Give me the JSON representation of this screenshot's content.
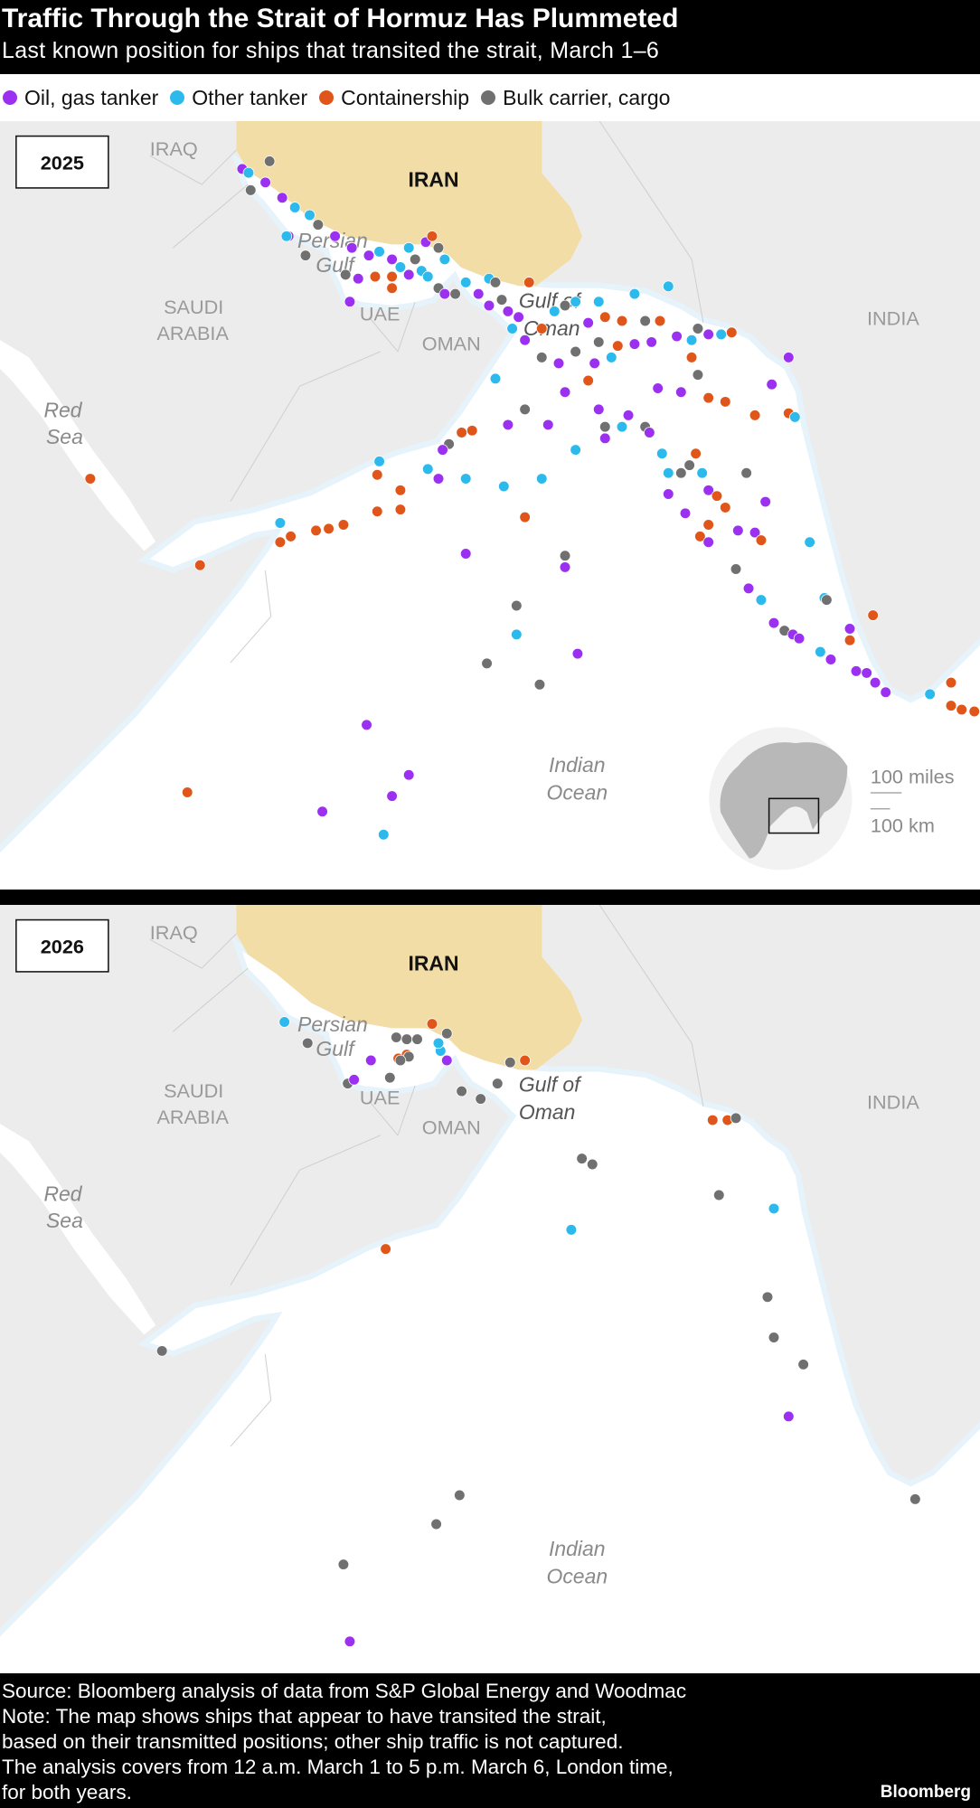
{
  "header": {
    "title": "Traffic Through the Strait of Hormuz Has Plummeted",
    "subtitle": "Last known position for ships that transited the strait, March 1–6"
  },
  "legend": [
    {
      "id": "oil",
      "label": "Oil, gas tanker",
      "color": "#9b30f0"
    },
    {
      "id": "other",
      "label": "Other tanker",
      "color": "#2cb9ec"
    },
    {
      "id": "container",
      "label": "Containership",
      "color": "#e0561a"
    },
    {
      "id": "bulk",
      "label": "Bulk carrier, cargo",
      "color": "#707070"
    }
  ],
  "colors": {
    "land": "#ececec",
    "sea": "#ffffff",
    "iran": "#f3dda6"
  },
  "map_labels": {
    "iraq": "IRAQ",
    "iran": "IRAN",
    "persian": "Persian",
    "gulf": "Gulf",
    "saudi": "SAUDI",
    "arabia": "ARABIA",
    "uae": "UAE",
    "oman": "OMAN",
    "gulf_of": "Gulf of",
    "oman_sea": "Oman",
    "india": "INDIA",
    "red": "Red",
    "sea": "Sea",
    "indian": "Indian",
    "ocean": "Ocean"
  },
  "inset": {
    "scale_miles": "100 miles",
    "scale_km": "100 km"
  },
  "maps": [
    {
      "year": "2025",
      "ships": [
        [
          46.2,
          31.8,
          "oil"
        ],
        [
          46.5,
          31.6,
          "other"
        ],
        [
          47.5,
          32.2,
          "bulk"
        ],
        [
          46.6,
          30.7,
          "bulk"
        ],
        [
          47.3,
          31.1,
          "oil"
        ],
        [
          48.1,
          30.3,
          "oil"
        ],
        [
          48.7,
          29.8,
          "other"
        ],
        [
          49.4,
          29.4,
          "other"
        ],
        [
          49.8,
          28.9,
          "bulk"
        ],
        [
          48.4,
          28.3,
          "oil"
        ],
        [
          48.3,
          28.3,
          "other"
        ],
        [
          49.2,
          27.3,
          "bulk"
        ],
        [
          50.6,
          28.3,
          "oil"
        ],
        [
          51.4,
          27.7,
          "oil"
        ],
        [
          52.2,
          27.3,
          "oil"
        ],
        [
          52.7,
          27.5,
          "other"
        ],
        [
          53.3,
          27.1,
          "oil"
        ],
        [
          54.1,
          27.7,
          "other"
        ],
        [
          54.9,
          28.0,
          "oil"
        ],
        [
          55.2,
          28.3,
          "container"
        ],
        [
          55.5,
          27.7,
          "bulk"
        ],
        [
          55.8,
          27.1,
          "other"
        ],
        [
          51.1,
          26.3,
          "bulk"
        ],
        [
          51.7,
          26.1,
          "oil"
        ],
        [
          52.5,
          26.2,
          "container"
        ],
        [
          53.3,
          26.2,
          "container"
        ],
        [
          54.1,
          26.3,
          "oil"
        ],
        [
          54.7,
          26.5,
          "other"
        ],
        [
          55.0,
          26.2,
          "other"
        ],
        [
          55.5,
          25.6,
          "bulk"
        ],
        [
          55.8,
          25.3,
          "oil"
        ],
        [
          56.3,
          25.3,
          "bulk"
        ],
        [
          56.8,
          25.9,
          "other"
        ],
        [
          57.4,
          25.3,
          "oil"
        ],
        [
          57.9,
          26.1,
          "other"
        ],
        [
          58.2,
          25.9,
          "bulk"
        ],
        [
          57.9,
          24.7,
          "oil"
        ],
        [
          58.5,
          25.0,
          "bulk"
        ],
        [
          58.8,
          24.4,
          "oil"
        ],
        [
          59.0,
          23.5,
          "other"
        ],
        [
          59.3,
          24.1,
          "oil"
        ],
        [
          59.8,
          25.9,
          "container"
        ],
        [
          59.6,
          22.9,
          "oil"
        ],
        [
          60.4,
          23.5,
          "container"
        ],
        [
          61.0,
          24.4,
          "other"
        ],
        [
          61.5,
          24.7,
          "bulk"
        ],
        [
          62.0,
          24.9,
          "other"
        ],
        [
          51.3,
          24.9,
          "oil"
        ],
        [
          53.3,
          25.6,
          "container"
        ],
        [
          53.7,
          26.7,
          "other"
        ],
        [
          54.4,
          27.1,
          "bulk"
        ],
        [
          63.1,
          24.9,
          "other"
        ],
        [
          64.8,
          25.3,
          "other"
        ],
        [
          66.4,
          25.7,
          "other"
        ],
        [
          62.6,
          23.8,
          "oil"
        ],
        [
          63.4,
          24.1,
          "container"
        ],
        [
          64.2,
          23.9,
          "container"
        ],
        [
          65.3,
          23.9,
          "bulk"
        ],
        [
          66.0,
          23.9,
          "container"
        ],
        [
          63.1,
          22.8,
          "bulk"
        ],
        [
          64.0,
          22.6,
          "container"
        ],
        [
          64.8,
          22.7,
          "oil"
        ],
        [
          65.6,
          22.8,
          "oil"
        ],
        [
          66.8,
          23.1,
          "oil"
        ],
        [
          67.8,
          23.5,
          "bulk"
        ],
        [
          68.3,
          23.2,
          "oil"
        ],
        [
          68.9,
          23.2,
          "other"
        ],
        [
          69.4,
          23.3,
          "container"
        ],
        [
          67.5,
          22.9,
          "other"
        ],
        [
          60.4,
          22.0,
          "bulk"
        ],
        [
          61.2,
          21.7,
          "oil"
        ],
        [
          62.0,
          22.3,
          "bulk"
        ],
        [
          62.9,
          21.7,
          "oil"
        ],
        [
          63.7,
          22.0,
          "other"
        ],
        [
          61.5,
          20.2,
          "oil"
        ],
        [
          62.6,
          20.8,
          "container"
        ],
        [
          58.2,
          20.9,
          "other"
        ],
        [
          59.6,
          19.3,
          "bulk"
        ],
        [
          58.8,
          18.5,
          "oil"
        ],
        [
          63.1,
          19.3,
          "oil"
        ],
        [
          63.4,
          18.4,
          "bulk"
        ],
        [
          64.5,
          19.0,
          "oil"
        ],
        [
          64.2,
          18.4,
          "other"
        ],
        [
          65.3,
          18.4,
          "bulk"
        ],
        [
          67.5,
          22.0,
          "container"
        ],
        [
          67.8,
          21.1,
          "bulk"
        ],
        [
          65.9,
          20.4,
          "oil"
        ],
        [
          67.0,
          20.2,
          "oil"
        ],
        [
          68.3,
          19.9,
          "container"
        ],
        [
          69.1,
          19.7,
          "container"
        ],
        [
          70.5,
          19.0,
          "container"
        ],
        [
          72.1,
          19.1,
          "container"
        ],
        [
          72.4,
          18.9,
          "other"
        ],
        [
          71.3,
          20.6,
          "oil"
        ],
        [
          72.1,
          22.0,
          "oil"
        ],
        [
          60.7,
          18.5,
          "oil"
        ],
        [
          57.1,
          18.2,
          "container"
        ],
        [
          56.6,
          18.1,
          "container"
        ],
        [
          56.0,
          17.5,
          "bulk"
        ],
        [
          55.7,
          17.2,
          "oil"
        ],
        [
          52.7,
          16.6,
          "other"
        ],
        [
          52.6,
          15.9,
          "container"
        ],
        [
          55.0,
          16.2,
          "other"
        ],
        [
          55.5,
          15.7,
          "oil"
        ],
        [
          56.8,
          15.7,
          "other"
        ],
        [
          58.6,
          15.3,
          "other"
        ],
        [
          60.4,
          15.7,
          "other"
        ],
        [
          62.0,
          17.2,
          "other"
        ],
        [
          63.4,
          17.8,
          "oil"
        ],
        [
          65.5,
          18.1,
          "oil"
        ],
        [
          66.1,
          17.0,
          "other"
        ],
        [
          66.4,
          16.0,
          "other"
        ],
        [
          66.4,
          14.9,
          "oil"
        ],
        [
          67.0,
          16.0,
          "bulk"
        ],
        [
          67.4,
          16.4,
          "bulk"
        ],
        [
          67.7,
          17.0,
          "container"
        ],
        [
          68.0,
          16.0,
          "other"
        ],
        [
          68.3,
          15.1,
          "oil"
        ],
        [
          68.7,
          14.8,
          "container"
        ],
        [
          69.1,
          14.2,
          "container"
        ],
        [
          70.1,
          16.0,
          "bulk"
        ],
        [
          71.0,
          14.5,
          "oil"
        ],
        [
          67.2,
          13.9,
          "oil"
        ],
        [
          68.3,
          13.3,
          "container"
        ],
        [
          67.9,
          12.7,
          "container"
        ],
        [
          68.3,
          12.4,
          "oil"
        ],
        [
          69.7,
          13.0,
          "oil"
        ],
        [
          70.5,
          12.9,
          "oil"
        ],
        [
          70.8,
          12.5,
          "container"
        ],
        [
          73.1,
          12.4,
          "other"
        ],
        [
          69.6,
          11.0,
          "bulk"
        ],
        [
          70.2,
          10.0,
          "oil"
        ],
        [
          70.8,
          9.4,
          "other"
        ],
        [
          71.4,
          8.2,
          "oil"
        ],
        [
          71.9,
          7.8,
          "bulk"
        ],
        [
          72.3,
          7.6,
          "oil"
        ],
        [
          72.6,
          7.4,
          "oil"
        ],
        [
          73.8,
          9.5,
          "other"
        ],
        [
          73.9,
          9.4,
          "bulk"
        ],
        [
          75.0,
          7.9,
          "oil"
        ],
        [
          75.0,
          7.3,
          "container"
        ],
        [
          73.6,
          6.7,
          "other"
        ],
        [
          74.1,
          6.3,
          "oil"
        ],
        [
          76.1,
          8.6,
          "container"
        ],
        [
          75.3,
          5.7,
          "oil"
        ],
        [
          75.8,
          5.6,
          "oil"
        ],
        [
          76.2,
          5.1,
          "oil"
        ],
        [
          76.7,
          4.6,
          "oil"
        ],
        [
          78.8,
          4.5,
          "other"
        ],
        [
          79.8,
          5.1,
          "container"
        ],
        [
          79.8,
          3.9,
          "container"
        ],
        [
          80.3,
          3.7,
          "container"
        ],
        [
          80.9,
          3.6,
          "container"
        ],
        [
          53.7,
          15.1,
          "container"
        ],
        [
          53.7,
          14.1,
          "container"
        ],
        [
          52.6,
          14.0,
          "container"
        ],
        [
          48.0,
          13.4,
          "other"
        ],
        [
          48.0,
          12.4,
          "container"
        ],
        [
          48.5,
          12.7,
          "container"
        ],
        [
          49.7,
          13.0,
          "container"
        ],
        [
          50.3,
          13.1,
          "container"
        ],
        [
          51.0,
          13.3,
          "container"
        ],
        [
          59.6,
          13.7,
          "container"
        ],
        [
          56.8,
          11.8,
          "oil"
        ],
        [
          61.5,
          11.7,
          "bulk"
        ],
        [
          61.5,
          11.1,
          "oil"
        ],
        [
          44.2,
          11.2,
          "container"
        ],
        [
          39.0,
          15.7,
          "container"
        ],
        [
          59.2,
          9.1,
          "bulk"
        ],
        [
          59.2,
          7.6,
          "other"
        ],
        [
          62.1,
          6.6,
          "oil"
        ],
        [
          57.8,
          6.1,
          "bulk"
        ],
        [
          60.3,
          5.0,
          "bulk"
        ],
        [
          52.1,
          2.9,
          "oil"
        ],
        [
          54.1,
          0.3,
          "oil"
        ],
        [
          53.3,
          -0.8,
          "oil"
        ],
        [
          50.0,
          -1.6,
          "oil"
        ],
        [
          52.9,
          -2.8,
          "other"
        ],
        [
          43.6,
          -0.6,
          "container"
        ]
      ]
    },
    {
      "year": "2026",
      "ships": [
        [
          48.2,
          28.2,
          "other"
        ],
        [
          49.3,
          27.1,
          "bulk"
        ],
        [
          51.2,
          25.0,
          "bulk"
        ],
        [
          51.5,
          25.2,
          "oil"
        ],
        [
          52.3,
          26.2,
          "oil"
        ],
        [
          53.2,
          25.3,
          "bulk"
        ],
        [
          53.5,
          27.4,
          "bulk"
        ],
        [
          54.0,
          27.3,
          "bulk"
        ],
        [
          54.5,
          27.3,
          "bulk"
        ],
        [
          53.6,
          26.3,
          "container"
        ],
        [
          54.0,
          26.5,
          "container"
        ],
        [
          54.1,
          26.4,
          "bulk"
        ],
        [
          53.7,
          26.2,
          "bulk"
        ],
        [
          55.2,
          28.1,
          "container"
        ],
        [
          55.9,
          27.6,
          "bulk"
        ],
        [
          55.6,
          26.7,
          "other"
        ],
        [
          55.9,
          26.2,
          "oil"
        ],
        [
          55.5,
          27.1,
          "other"
        ],
        [
          56.6,
          24.6,
          "bulk"
        ],
        [
          57.5,
          24.2,
          "bulk"
        ],
        [
          58.3,
          25.0,
          "bulk"
        ],
        [
          58.9,
          26.1,
          "bulk"
        ],
        [
          59.6,
          26.2,
          "container"
        ],
        [
          68.5,
          23.1,
          "container"
        ],
        [
          69.2,
          23.1,
          "container"
        ],
        [
          69.6,
          23.2,
          "bulk"
        ],
        [
          62.3,
          21.1,
          "bulk"
        ],
        [
          62.8,
          20.8,
          "bulk"
        ],
        [
          68.8,
          19.2,
          "bulk"
        ],
        [
          71.4,
          18.5,
          "other"
        ],
        [
          61.8,
          17.4,
          "other"
        ],
        [
          53.0,
          16.4,
          "container"
        ],
        [
          42.4,
          11.1,
          "bulk"
        ],
        [
          71.1,
          13.9,
          "bulk"
        ],
        [
          71.4,
          11.8,
          "bulk"
        ],
        [
          72.8,
          10.4,
          "bulk"
        ],
        [
          72.1,
          7.7,
          "oil"
        ],
        [
          78.1,
          3.4,
          "bulk"
        ],
        [
          56.5,
          3.6,
          "bulk"
        ],
        [
          55.4,
          2.1,
          "bulk"
        ],
        [
          51.0,
          0.0,
          "bulk"
        ],
        [
          51.3,
          -4.0,
          "oil"
        ]
      ]
    }
  ],
  "footer": {
    "source": "Source: Bloomberg analysis of data from S&P Global Energy and Woodmac",
    "note1": "Note: The map shows ships that appear to have transited the strait,",
    "note2": "based on their transmitted positions; other ship traffic is not captured.",
    "note3": "The analysis covers from 12 a.m. March 1 to 5 p.m. March 6, London time,",
    "note4": "for both years.",
    "brand": "Bloomberg"
  }
}
